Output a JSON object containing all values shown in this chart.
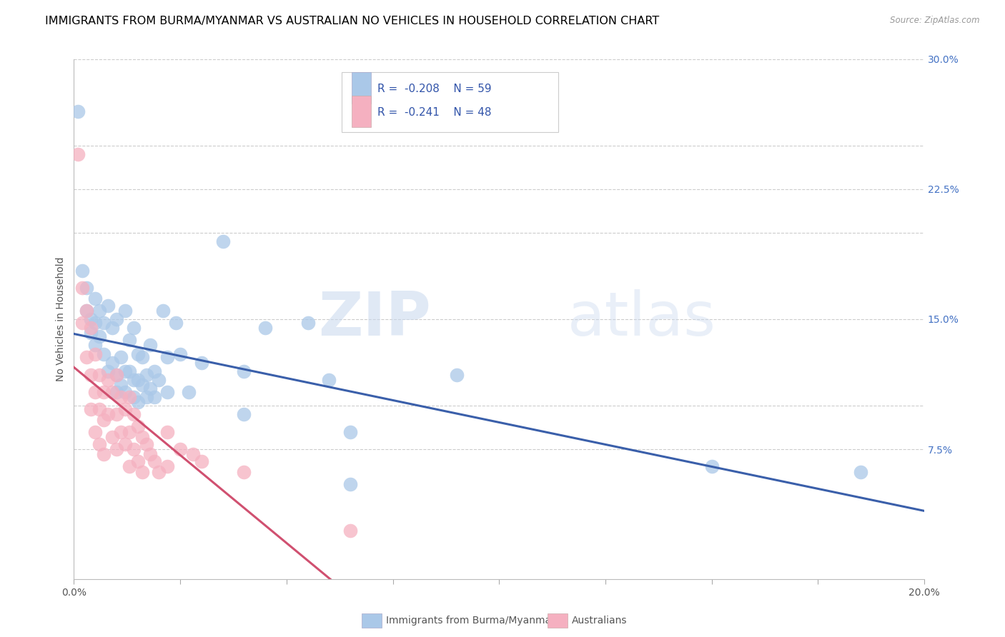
{
  "title": "IMMIGRANTS FROM BURMA/MYANMAR VS AUSTRALIAN NO VEHICLES IN HOUSEHOLD CORRELATION CHART",
  "source": "Source: ZipAtlas.com",
  "ylabel": "No Vehicles in Household",
  "legend_label1": "Immigrants from Burma/Myanmar",
  "legend_label2": "Australians",
  "r1": -0.208,
  "n1": 59,
  "r2": -0.241,
  "n2": 48,
  "xlim": [
    0.0,
    0.2
  ],
  "ylim": [
    0.0,
    0.3
  ],
  "xticks": [
    0.0,
    0.025,
    0.05,
    0.075,
    0.1,
    0.125,
    0.15,
    0.175,
    0.2
  ],
  "xtick_labels_show": [
    "0.0%",
    "",
    "",
    "",
    "",
    "",
    "",
    "",
    "20.0%"
  ],
  "yticks_right": [
    0.075,
    0.1,
    0.15,
    0.2,
    0.225,
    0.25,
    0.3
  ],
  "yticks_right_labels": [
    "7.5%",
    "",
    "15.0%",
    "",
    "22.5%",
    "",
    "30.0%"
  ],
  "color_blue": "#aac8e8",
  "color_pink": "#f5b0c0",
  "line_blue": "#3a5faa",
  "line_pink": "#d05070",
  "line_pink_dash": "#e8a0b8",
  "watermark_zip": "ZIP",
  "watermark_atlas": "atlas",
  "scatter_blue": [
    [
      0.001,
      0.27
    ],
    [
      0.002,
      0.178
    ],
    [
      0.003,
      0.168
    ],
    [
      0.003,
      0.155
    ],
    [
      0.004,
      0.15
    ],
    [
      0.004,
      0.142
    ],
    [
      0.005,
      0.162
    ],
    [
      0.005,
      0.148
    ],
    [
      0.005,
      0.135
    ],
    [
      0.006,
      0.155
    ],
    [
      0.006,
      0.14
    ],
    [
      0.007,
      0.148
    ],
    [
      0.007,
      0.13
    ],
    [
      0.008,
      0.158
    ],
    [
      0.008,
      0.12
    ],
    [
      0.009,
      0.145
    ],
    [
      0.009,
      0.125
    ],
    [
      0.01,
      0.15
    ],
    [
      0.01,
      0.118
    ],
    [
      0.01,
      0.108
    ],
    [
      0.011,
      0.128
    ],
    [
      0.011,
      0.112
    ],
    [
      0.012,
      0.155
    ],
    [
      0.012,
      0.12
    ],
    [
      0.012,
      0.108
    ],
    [
      0.013,
      0.138
    ],
    [
      0.013,
      0.12
    ],
    [
      0.014,
      0.145
    ],
    [
      0.014,
      0.115
    ],
    [
      0.014,
      0.105
    ],
    [
      0.015,
      0.13
    ],
    [
      0.015,
      0.115
    ],
    [
      0.015,
      0.102
    ],
    [
      0.016,
      0.128
    ],
    [
      0.016,
      0.112
    ],
    [
      0.017,
      0.118
    ],
    [
      0.017,
      0.105
    ],
    [
      0.018,
      0.135
    ],
    [
      0.018,
      0.11
    ],
    [
      0.019,
      0.12
    ],
    [
      0.019,
      0.105
    ],
    [
      0.02,
      0.115
    ],
    [
      0.021,
      0.155
    ],
    [
      0.022,
      0.128
    ],
    [
      0.022,
      0.108
    ],
    [
      0.024,
      0.148
    ],
    [
      0.025,
      0.13
    ],
    [
      0.027,
      0.108
    ],
    [
      0.03,
      0.125
    ],
    [
      0.035,
      0.195
    ],
    [
      0.04,
      0.12
    ],
    [
      0.04,
      0.095
    ],
    [
      0.045,
      0.145
    ],
    [
      0.055,
      0.148
    ],
    [
      0.06,
      0.115
    ],
    [
      0.065,
      0.085
    ],
    [
      0.065,
      0.055
    ],
    [
      0.09,
      0.118
    ],
    [
      0.15,
      0.065
    ],
    [
      0.185,
      0.062
    ]
  ],
  "scatter_pink": [
    [
      0.001,
      0.245
    ],
    [
      0.002,
      0.168
    ],
    [
      0.002,
      0.148
    ],
    [
      0.003,
      0.155
    ],
    [
      0.003,
      0.128
    ],
    [
      0.004,
      0.145
    ],
    [
      0.004,
      0.118
    ],
    [
      0.004,
      0.098
    ],
    [
      0.005,
      0.13
    ],
    [
      0.005,
      0.108
    ],
    [
      0.005,
      0.085
    ],
    [
      0.006,
      0.118
    ],
    [
      0.006,
      0.098
    ],
    [
      0.006,
      0.078
    ],
    [
      0.007,
      0.108
    ],
    [
      0.007,
      0.092
    ],
    [
      0.007,
      0.072
    ],
    [
      0.008,
      0.115
    ],
    [
      0.008,
      0.095
    ],
    [
      0.009,
      0.108
    ],
    [
      0.009,
      0.082
    ],
    [
      0.01,
      0.118
    ],
    [
      0.01,
      0.095
    ],
    [
      0.01,
      0.075
    ],
    [
      0.011,
      0.105
    ],
    [
      0.011,
      0.085
    ],
    [
      0.012,
      0.098
    ],
    [
      0.012,
      0.078
    ],
    [
      0.013,
      0.105
    ],
    [
      0.013,
      0.085
    ],
    [
      0.013,
      0.065
    ],
    [
      0.014,
      0.095
    ],
    [
      0.014,
      0.075
    ],
    [
      0.015,
      0.088
    ],
    [
      0.015,
      0.068
    ],
    [
      0.016,
      0.082
    ],
    [
      0.016,
      0.062
    ],
    [
      0.017,
      0.078
    ],
    [
      0.018,
      0.072
    ],
    [
      0.019,
      0.068
    ],
    [
      0.02,
      0.062
    ],
    [
      0.022,
      0.085
    ],
    [
      0.022,
      0.065
    ],
    [
      0.025,
      0.075
    ],
    [
      0.028,
      0.072
    ],
    [
      0.03,
      0.068
    ],
    [
      0.04,
      0.062
    ],
    [
      0.065,
      0.028
    ]
  ],
  "bubble_size": 200,
  "title_fontsize": 11.5,
  "axis_label_fontsize": 10,
  "tick_fontsize": 10
}
